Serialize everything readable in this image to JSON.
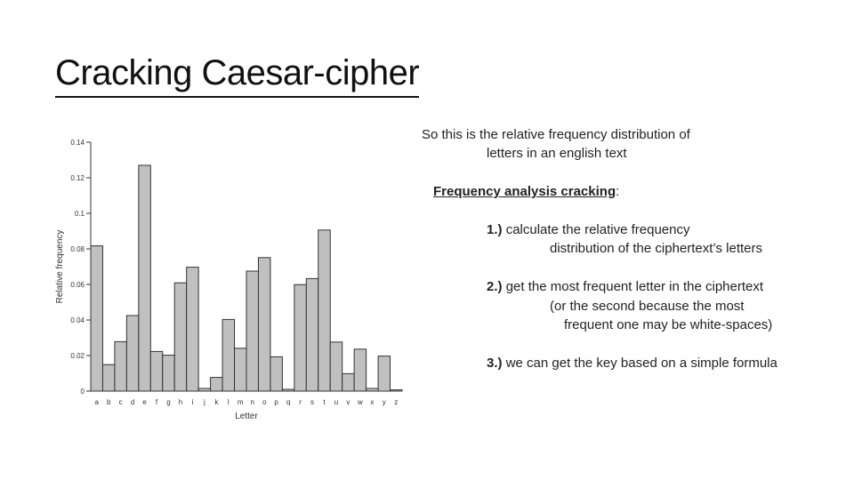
{
  "slide": {
    "title": "Cracking Caesar-cipher",
    "intro_line1": "So this is the relative frequency distribution of",
    "intro_line2": "letters in an english text",
    "heading": "Frequency analysis cracking",
    "heading_colon": ":",
    "step1_num": "1.)",
    "step1_line1": "calculate the relative frequency",
    "step1_line2": "distribution of the ciphertext’s letters",
    "step2_num": "2.)",
    "step2_line1": "get the most frequent letter in the ciphertext",
    "step2_line2": "(or the second because the most",
    "step2_line3": "frequent one may be white-spaces)",
    "step3_num": "3.)",
    "step3_line1": "we can get the key based on a simple formula"
  },
  "chart_data": {
    "type": "bar",
    "xlabel": "Letter",
    "ylabel": "Relative frequency",
    "ylim": [
      0,
      0.14
    ],
    "yticks": [
      {
        "v": 0,
        "label": "0"
      },
      {
        "v": 0.02,
        "label": "0.02"
      },
      {
        "v": 0.04,
        "label": "0.04"
      },
      {
        "v": 0.06,
        "label": "0.06"
      },
      {
        "v": 0.08,
        "label": "0.08"
      },
      {
        "v": 0.1,
        "label": "0.1"
      },
      {
        "v": 0.12,
        "label": "0.12"
      },
      {
        "v": 0.14,
        "label": "0.14"
      }
    ],
    "categories": [
      "a",
      "b",
      "c",
      "d",
      "e",
      "f",
      "g",
      "h",
      "i",
      "j",
      "k",
      "l",
      "m",
      "n",
      "o",
      "p",
      "q",
      "r",
      "s",
      "t",
      "u",
      "v",
      "w",
      "x",
      "y",
      "z"
    ],
    "values": [
      0.0817,
      0.0149,
      0.0278,
      0.0425,
      0.127,
      0.0223,
      0.0202,
      0.0609,
      0.0697,
      0.0015,
      0.0077,
      0.0403,
      0.0241,
      0.0675,
      0.0751,
      0.0193,
      0.001,
      0.0599,
      0.0633,
      0.0906,
      0.0276,
      0.0098,
      0.0236,
      0.0015,
      0.0197,
      0.0007
    ],
    "bar_color": "#c0c0c0",
    "bar_stroke": "#333333",
    "grid": false
  }
}
